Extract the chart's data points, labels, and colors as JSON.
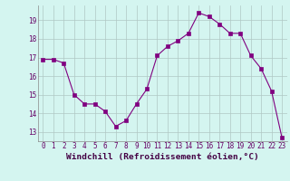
{
  "x": [
    0,
    1,
    2,
    3,
    4,
    5,
    6,
    7,
    8,
    9,
    10,
    11,
    12,
    13,
    14,
    15,
    16,
    17,
    18,
    19,
    20,
    21,
    22,
    23
  ],
  "y": [
    16.9,
    16.9,
    16.7,
    15.0,
    14.5,
    14.5,
    14.1,
    13.3,
    13.6,
    14.5,
    15.3,
    17.1,
    17.6,
    17.9,
    18.3,
    19.4,
    19.2,
    18.8,
    18.3,
    18.3,
    17.1,
    16.4,
    15.2,
    12.7
  ],
  "xlim": [
    -0.5,
    23.5
  ],
  "ylim": [
    12.5,
    19.8
  ],
  "yticks": [
    13,
    14,
    15,
    16,
    17,
    18,
    19
  ],
  "xticks": [
    0,
    1,
    2,
    3,
    4,
    5,
    6,
    7,
    8,
    9,
    10,
    11,
    12,
    13,
    14,
    15,
    16,
    17,
    18,
    19,
    20,
    21,
    22,
    23
  ],
  "xlabel": "Windchill (Refroidissement éolien,°C)",
  "line_color": "#800080",
  "marker": "s",
  "marker_size": 2.2,
  "bg_color": "#d4f5f0",
  "grid_color": "#b0c8c4",
  "tick_fontsize": 5.5,
  "label_fontsize": 6.8
}
